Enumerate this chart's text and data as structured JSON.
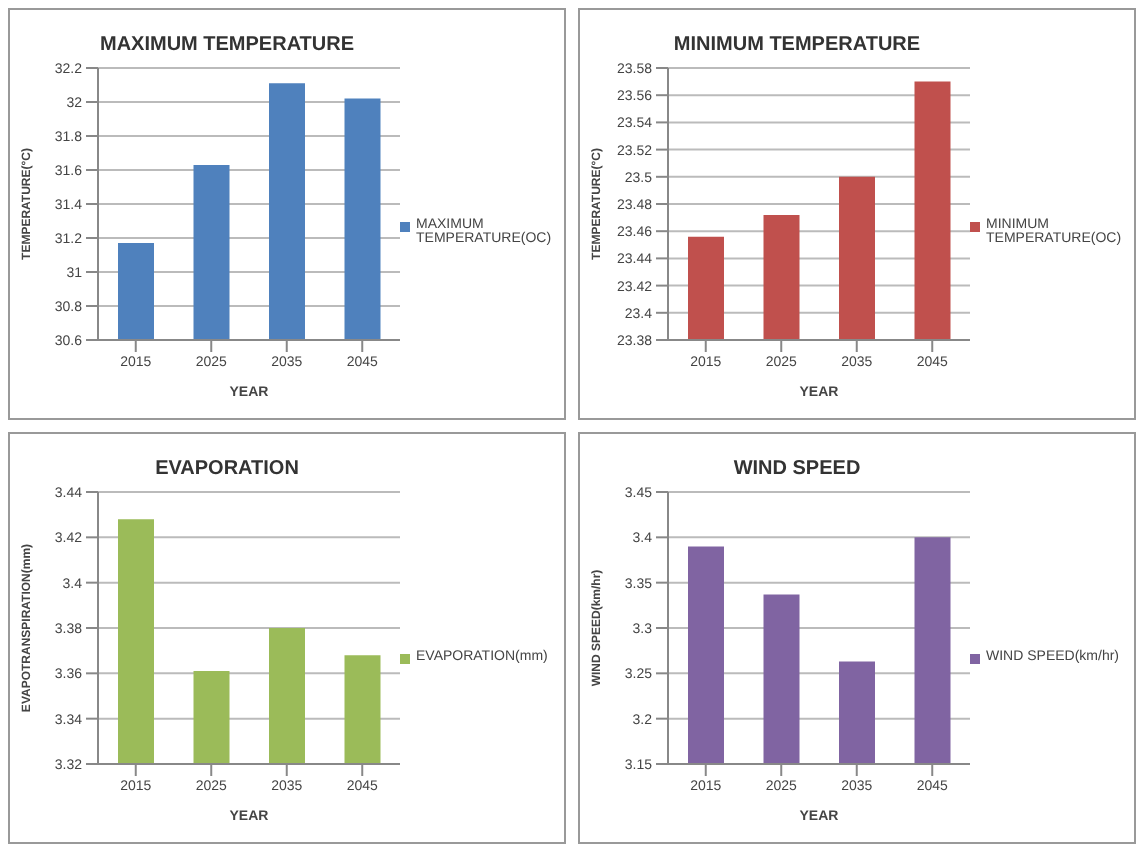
{
  "chart_data": [
    {
      "type": "bar",
      "title": "MAXIMUM TEMPERATURE",
      "xlabel": "YEAR",
      "ylabel": "TEMPERATURE(°C)",
      "categories": [
        "2015",
        "2025",
        "2035",
        "2045"
      ],
      "series": [
        {
          "name": "MAXIMUM TEMPERATURE(OC)",
          "color": "#4f81bd",
          "values": [
            31.17,
            31.63,
            32.11,
            32.02
          ]
        }
      ],
      "ylim": [
        30.6,
        32.2
      ],
      "yticks": [
        30.6,
        30.8,
        31,
        31.2,
        31.4,
        31.6,
        31.8,
        32,
        32.2
      ],
      "grid": "y",
      "legend": "right"
    },
    {
      "type": "bar",
      "title": "MINIMUM TEMPERATURE",
      "xlabel": "YEAR",
      "ylabel": "TEMPERATURE(°C)",
      "categories": [
        "2015",
        "2025",
        "2035",
        "2045"
      ],
      "series": [
        {
          "name": "MINIMUM TEMPERATURE(OC)",
          "color": "#c0504d",
          "values": [
            23.456,
            23.472,
            23.5,
            23.57
          ]
        }
      ],
      "ylim": [
        23.38,
        23.58
      ],
      "yticks": [
        23.38,
        23.4,
        23.42,
        23.44,
        23.46,
        23.48,
        23.5,
        23.52,
        23.54,
        23.56,
        23.58
      ],
      "grid": "y",
      "legend": "right"
    },
    {
      "type": "bar",
      "title": "EVAPORATION",
      "xlabel": "YEAR",
      "ylabel": "EVAPOTRANSPIRATION(mm)",
      "categories": [
        "2015",
        "2025",
        "2035",
        "2045"
      ],
      "series": [
        {
          "name": "EVAPORATION(mm)",
          "color": "#9bbb59",
          "values": [
            3.428,
            3.361,
            3.38,
            3.368
          ]
        }
      ],
      "ylim": [
        3.32,
        3.44
      ],
      "yticks": [
        3.32,
        3.34,
        3.36,
        3.38,
        3.4,
        3.42,
        3.44
      ],
      "grid": "y",
      "legend": "right"
    },
    {
      "type": "bar",
      "title": "WIND SPEED",
      "xlabel": "YEAR",
      "ylabel": "WIND SPEED(km/hr)",
      "categories": [
        "2015",
        "2025",
        "2035",
        "2045"
      ],
      "series": [
        {
          "name": "WIND SPEED(km/hr)",
          "color": "#8064a2",
          "values": [
            3.39,
            3.337,
            3.263,
            3.4
          ]
        }
      ],
      "ylim": [
        3.15,
        3.45
      ],
      "yticks": [
        3.15,
        3.2,
        3.25,
        3.3,
        3.35,
        3.4,
        3.45
      ],
      "grid": "y",
      "legend": "right"
    }
  ]
}
